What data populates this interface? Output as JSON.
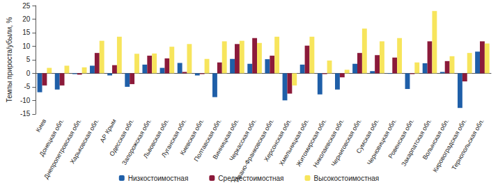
{
  "chart_data": {
    "type": "bar",
    "y_label": "Темпы прироста/убыли, %",
    "categories": [
      "Киев",
      "Донецкая обл.",
      "Днепропетровская обл.",
      "Харьковская обл.",
      "АР Крым",
      "Одесская обл.",
      "Запорожская обл.",
      "Львовская обл.",
      "Луганская обл.",
      "Киевская обл.",
      "Полтавская обл.",
      "Винницкая обл.",
      "Черкасская обл.",
      "Ивано-Франковская обл.",
      "Херсонская обл.",
      "Хмельницкая обл.",
      "Житомирская обл.",
      "Николаевская обл.",
      "Черниговская обл.",
      "Сумская обл.",
      "Черновицкая обл.",
      "Ровенская обл.",
      "Закарпатская обл.",
      "Волынская обл.",
      "Кировоградская обл.",
      "Тернопольская обл."
    ],
    "series": [
      {
        "name": "Низкостоимостная",
        "color": "#1f5fa8",
        "values": [
          -7,
          -6,
          -0.3,
          2.8,
          -0.8,
          -5,
          3.2,
          2,
          3.8,
          -0.8,
          -8.8,
          5.3,
          3.5,
          5.2,
          -10,
          3.2,
          -7.8,
          -6,
          3.5,
          0.8,
          -0.2,
          -5.8,
          3.7,
          0.5,
          -12.8,
          8
        ]
      },
      {
        "name": "Среднестоимостная",
        "color": "#8b1a3a",
        "values": [
          -4.5,
          -4.5,
          -0.5,
          7.5,
          3,
          -4,
          6.5,
          5.5,
          0.5,
          -0.3,
          4,
          10.8,
          13,
          6.5,
          -7.5,
          10.2,
          -0.3,
          -1.5,
          7.5,
          6.7,
          5.8,
          -0.3,
          11.8,
          4.5,
          -3,
          11.8
        ]
      },
      {
        "name": "Высокостоимостная",
        "color": "#f7e55c",
        "values": [
          2,
          2.8,
          2.2,
          12,
          13.5,
          7.2,
          7.3,
          9.8,
          10.8,
          5.3,
          11.8,
          12,
          11.2,
          13.5,
          -4.5,
          13.5,
          4.7,
          1.3,
          16.5,
          11.8,
          13,
          4,
          23,
          6.3,
          7.5,
          11
        ]
      }
    ],
    "ylim": [
      -15,
      25
    ],
    "yticks": [
      -15,
      -10,
      -5,
      0,
      5,
      10,
      15,
      20,
      25
    ],
    "grid": false,
    "legend": "bottom"
  }
}
